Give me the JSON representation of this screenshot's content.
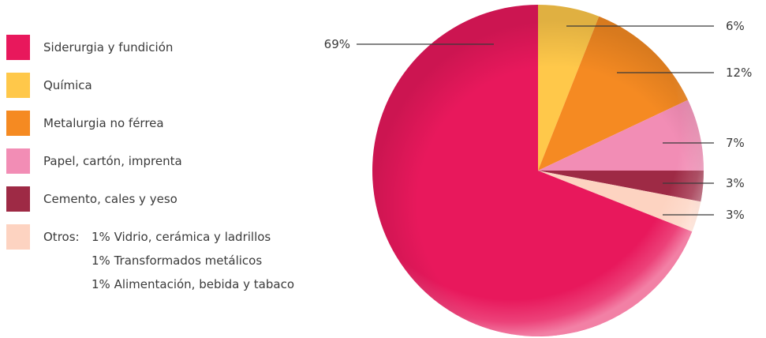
{
  "chart_data": {
    "type": "pie",
    "start_angle_deg": 0,
    "direction": "clockwise",
    "slices": [
      {
        "label": "Química",
        "value": 6,
        "display": "6%",
        "color": "#FFC84A"
      },
      {
        "label": "Metalurgia no férrea",
        "value": 12,
        "display": "12%",
        "color": "#F58A22"
      },
      {
        "label": "Papel, cartón, imprenta",
        "value": 7,
        "display": "7%",
        "color": "#F28DB5"
      },
      {
        "label": "Cemento, cales y yeso",
        "value": 3,
        "display": "3%",
        "color": "#9E2A45"
      },
      {
        "label": "Otros",
        "value": 3,
        "display": "3%",
        "color": "#FDD3C1"
      },
      {
        "label": "Siderurgia y fundición",
        "value": 69,
        "display": "69%",
        "color": "#E8185C"
      }
    ]
  },
  "legend": {
    "items": [
      {
        "label": "Siderurgia y fundición",
        "color": "#E8185C"
      },
      {
        "label": "Química",
        "color": "#FFC84A"
      },
      {
        "label": "Metalurgia no férrea",
        "color": "#F58A22"
      },
      {
        "label": "Papel, cartón, imprenta",
        "color": "#F28DB5"
      },
      {
        "label": "Cemento, cales y yeso",
        "color": "#9E2A45"
      }
    ],
    "otros": {
      "prefix": "Otros:",
      "color": "#FDD3C1",
      "lines": [
        "1% Vidrio, cerámica y ladrillos",
        "1% Transformados metálicos",
        "1% Alimentación, bebida y tabaco"
      ]
    }
  }
}
